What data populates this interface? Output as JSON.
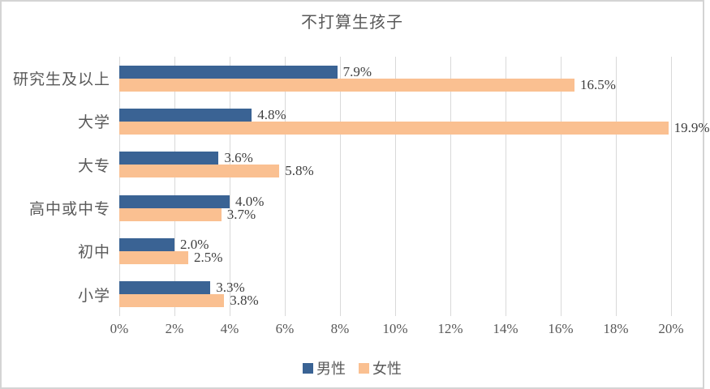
{
  "frame": {
    "background": "#ffffff",
    "border_color": "#d4d4d4"
  },
  "chart_data": {
    "type": "bar",
    "orientation": "horizontal",
    "title": "不打算生孩子",
    "categories": [
      "研究生及以上",
      "大学",
      "大专",
      "高中或中专",
      "初中",
      "小学"
    ],
    "series": [
      {
        "name": "男性",
        "color": "#3A6394",
        "values": [
          7.9,
          4.8,
          3.6,
          4.0,
          2.0,
          3.3
        ],
        "labels": [
          "7.9%",
          "4.8%",
          "3.6%",
          "4.0%",
          "2.0%",
          "3.3%"
        ]
      },
      {
        "name": "女性",
        "color": "#FAC091",
        "values": [
          16.5,
          19.9,
          5.8,
          3.7,
          2.5,
          3.8
        ],
        "labels": [
          "16.5%",
          "19.9%",
          "5.8%",
          "3.7%",
          "2.5%",
          "3.8%"
        ]
      }
    ],
    "x_ticks": [
      "0%",
      "2%",
      "4%",
      "6%",
      "8%",
      "10%",
      "12%",
      "14%",
      "16%",
      "18%",
      "20%"
    ],
    "xlim": [
      0,
      20
    ],
    "grid": "vertical",
    "gridline_color": "#d9d9d9",
    "legend_position": "bottom",
    "text_colors": {
      "title": "#595959",
      "axis": "#595959",
      "category": "#595959",
      "data_label": "#3f3f3f",
      "legend": "#595959"
    }
  }
}
